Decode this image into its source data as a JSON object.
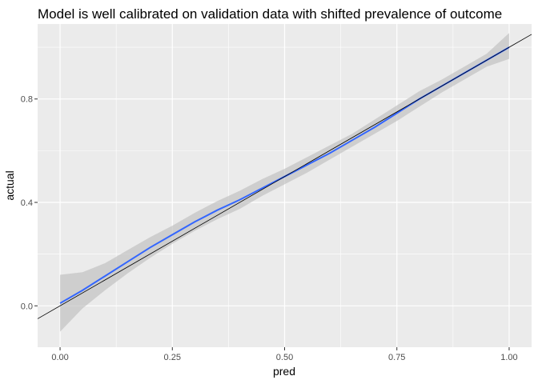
{
  "chart_data": {
    "type": "line",
    "title": "Model is well calibrated on validation data with shifted prevalence of outcome",
    "xlabel": "pred",
    "ylabel": "actual",
    "xlim": [
      -0.05,
      1.05
    ],
    "ylim": [
      -0.16,
      1.09
    ],
    "x_ticks": [
      0.0,
      0.25,
      0.5,
      0.75,
      1.0
    ],
    "x_tick_labels": [
      "0.00",
      "0.25",
      "0.50",
      "0.75",
      "1.00"
    ],
    "y_ticks": [
      0.0,
      0.4,
      0.8
    ],
    "y_tick_labels": [
      "0.0",
      "0.4",
      "0.8"
    ],
    "grid": true,
    "legend": "none",
    "colors": {
      "panel": "#ebebeb",
      "grid": "#ffffff",
      "smooth_line": "#3366ff",
      "ribbon": "#bebebe",
      "reference_line": "#000000"
    },
    "reference_line": {
      "slope": 1,
      "intercept": 0
    },
    "series": [
      {
        "x": [
          0.0,
          0.05,
          0.1,
          0.15,
          0.2,
          0.25,
          0.3,
          0.35,
          0.4,
          0.45,
          0.5,
          0.55,
          0.6,
          0.65,
          0.7,
          0.75,
          0.8,
          0.85,
          0.9,
          0.95,
          1.0
        ],
        "y": [
          0.01,
          0.06,
          0.115,
          0.17,
          0.225,
          0.275,
          0.325,
          0.37,
          0.41,
          0.455,
          0.5,
          0.545,
          0.59,
          0.64,
          0.69,
          0.745,
          0.8,
          0.85,
          0.9,
          0.95,
          1.0
        ],
        "lower": [
          -0.1,
          -0.01,
          0.06,
          0.125,
          0.185,
          0.24,
          0.29,
          0.335,
          0.375,
          0.425,
          0.47,
          0.515,
          0.565,
          0.615,
          0.665,
          0.715,
          0.77,
          0.825,
          0.875,
          0.925,
          0.955
        ],
        "upper": [
          0.12,
          0.13,
          0.165,
          0.215,
          0.265,
          0.31,
          0.36,
          0.405,
          0.445,
          0.49,
          0.53,
          0.575,
          0.62,
          0.665,
          0.72,
          0.775,
          0.83,
          0.875,
          0.925,
          0.975,
          1.055
        ]
      }
    ]
  }
}
